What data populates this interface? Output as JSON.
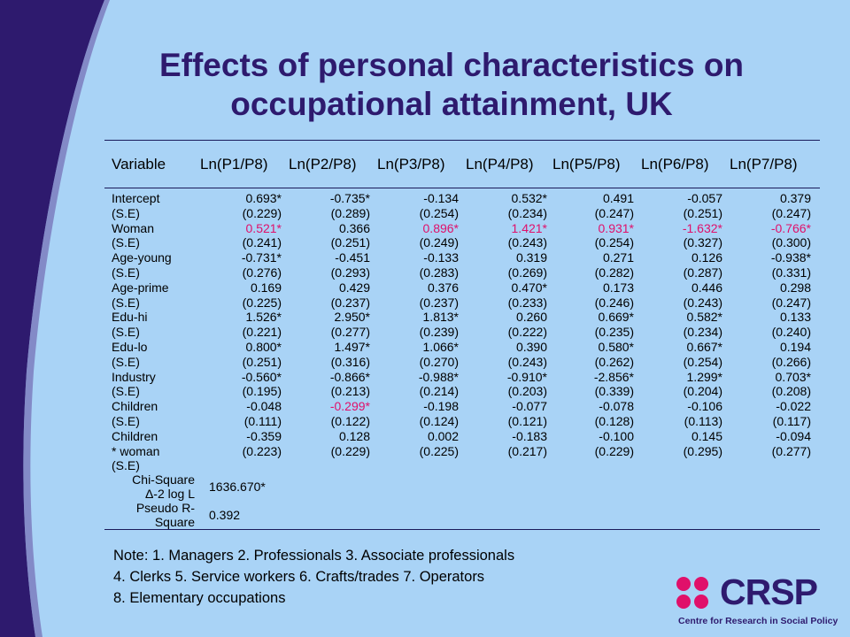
{
  "title": "Effects of personal characteristics on occupational attainment, UK",
  "table": {
    "variable_header": "Variable",
    "columns": [
      "Ln(P1/P8)",
      "Ln(P2/P8)",
      "Ln(P3/P8)",
      "Ln(P4/P8)",
      "Ln(P5/P8)",
      "Ln(P6/P8)",
      "Ln(P7/P8)"
    ],
    "rows": [
      {
        "label": "Intercept",
        "values": [
          "0.693*",
          "-0.735*",
          "-0.134",
          "0.532*",
          "0.491",
          "-0.057",
          "0.379"
        ],
        "highlight": [
          false,
          false,
          false,
          false,
          false,
          false,
          false
        ]
      },
      {
        "label": "(S.E)",
        "values": [
          "(0.229)",
          "(0.289)",
          "(0.254)",
          "(0.234)",
          "(0.247)",
          "(0.251)",
          "(0.247)"
        ],
        "highlight": [
          false,
          false,
          false,
          false,
          false,
          false,
          false
        ]
      },
      {
        "label": "Woman",
        "values": [
          "0.521*",
          "0.366",
          "0.896*",
          "1.421*",
          "0.931*",
          "-1.632*",
          "-0.766*"
        ],
        "highlight": [
          true,
          false,
          true,
          true,
          true,
          true,
          true
        ]
      },
      {
        "label": "(S.E)",
        "values": [
          "(0.241)",
          "(0.251)",
          "(0.249)",
          "(0.243)",
          "(0.254)",
          "(0.327)",
          "(0.300)"
        ],
        "highlight": [
          false,
          false,
          false,
          false,
          false,
          false,
          false
        ]
      },
      {
        "label": "Age-young",
        "values": [
          "-0.731*",
          "-0.451",
          "-0.133",
          "0.319",
          "0.271",
          "0.126",
          "-0.938*"
        ],
        "highlight": [
          false,
          false,
          false,
          false,
          false,
          false,
          false
        ]
      },
      {
        "label": "(S.E)",
        "values": [
          "(0.276)",
          "(0.293)",
          "(0.283)",
          "(0.269)",
          "(0.282)",
          "(0.287)",
          "(0.331)"
        ],
        "highlight": [
          false,
          false,
          false,
          false,
          false,
          false,
          false
        ]
      },
      {
        "label": "Age-prime",
        "values": [
          "0.169",
          "0.429",
          "0.376",
          "0.470*",
          "0.173",
          "0.446",
          "0.298"
        ],
        "highlight": [
          false,
          false,
          false,
          false,
          false,
          false,
          false
        ]
      },
      {
        "label": "(S.E)",
        "values": [
          "(0.225)",
          "(0.237)",
          "(0.237)",
          "(0.233)",
          "(0.246)",
          "(0.243)",
          "(0.247)"
        ],
        "highlight": [
          false,
          false,
          false,
          false,
          false,
          false,
          false
        ]
      },
      {
        "label": "Edu-hi",
        "values": [
          "1.526*",
          "2.950*",
          "1.813*",
          "0.260",
          "0.669*",
          "0.582*",
          "0.133"
        ],
        "highlight": [
          false,
          false,
          false,
          false,
          false,
          false,
          false
        ]
      },
      {
        "label": "(S.E)",
        "values": [
          "(0.221)",
          "(0.277)",
          "(0.239)",
          "(0.222)",
          "(0.235)",
          "(0.234)",
          "(0.240)"
        ],
        "highlight": [
          false,
          false,
          false,
          false,
          false,
          false,
          false
        ]
      },
      {
        "label": "Edu-lo",
        "values": [
          "0.800*",
          "1.497*",
          "1.066*",
          "0.390",
          "0.580*",
          "0.667*",
          "0.194"
        ],
        "highlight": [
          false,
          false,
          false,
          false,
          false,
          false,
          false
        ]
      },
      {
        "label": "(S.E)",
        "values": [
          "(0.251)",
          "(0.316)",
          "(0.270)",
          "(0.243)",
          "(0.262)",
          "(0.254)",
          "(0.266)"
        ],
        "highlight": [
          false,
          false,
          false,
          false,
          false,
          false,
          false
        ]
      },
      {
        "label": "Industry",
        "values": [
          "-0.560*",
          "-0.866*",
          "-0.988*",
          "-0.910*",
          "-2.856*",
          "1.299*",
          "0.703*"
        ],
        "highlight": [
          false,
          false,
          false,
          false,
          false,
          false,
          false
        ]
      },
      {
        "label": "(S.E)",
        "values": [
          "(0.195)",
          "(0.213)",
          "(0.214)",
          "(0.203)",
          "(0.339)",
          "(0.204)",
          "(0.208)"
        ],
        "highlight": [
          false,
          false,
          false,
          false,
          false,
          false,
          false
        ]
      },
      {
        "label": "Children",
        "values": [
          "-0.048",
          "-0.299*",
          "-0.198",
          "-0.077",
          "-0.078",
          "-0.106",
          "-0.022"
        ],
        "highlight": [
          false,
          true,
          false,
          false,
          false,
          false,
          false
        ]
      },
      {
        "label": "(S.E)",
        "values": [
          "(0.111)",
          "(0.122)",
          "(0.124)",
          "(0.121)",
          "(0.128)",
          "(0.113)",
          "(0.117)"
        ],
        "highlight": [
          false,
          false,
          false,
          false,
          false,
          false,
          false
        ]
      },
      {
        "label": "Children",
        "values": [
          "-0.359",
          "0.128",
          "0.002",
          "-0.183",
          "-0.100",
          "0.145",
          "-0.094"
        ],
        "highlight": [
          false,
          false,
          false,
          false,
          false,
          false,
          false
        ]
      },
      {
        "label": "* woman",
        "values": [
          "(0.223)",
          "(0.229)",
          "(0.225)",
          "(0.217)",
          "(0.229)",
          "(0.295)",
          "(0.277)"
        ],
        "highlight": [
          false,
          false,
          false,
          false,
          false,
          false,
          false
        ]
      },
      {
        "label": "(S.E)",
        "values": [
          "",
          "",
          "",
          "",
          "",
          "",
          ""
        ],
        "highlight": [
          false,
          false,
          false,
          false,
          false,
          false,
          false
        ]
      }
    ],
    "stats": [
      {
        "label_lines": [
          "Chi-Square",
          "Δ-2 log L"
        ],
        "value": "1636.670*"
      },
      {
        "label_lines": [
          "Pseudo R-",
          "Square"
        ],
        "value": "0.392"
      }
    ]
  },
  "note": {
    "lines": [
      "Note: 1. Managers 2. Professionals 3. Associate professionals",
      "4. Clerks 5. Service workers 6. Crafts/trades 7. Operators",
      "8. Elementary occupations"
    ]
  },
  "logo": {
    "name": "CRSP",
    "subtitle": "Centre for Research in Social Policy",
    "colors": {
      "dots": "#e0106a",
      "text": "#2e1a6e"
    }
  },
  "colors": {
    "background": "#a9d3f6",
    "swoosh": "#2e1a6e",
    "title": "#2e1a6e",
    "highlight": "#e0106a"
  }
}
